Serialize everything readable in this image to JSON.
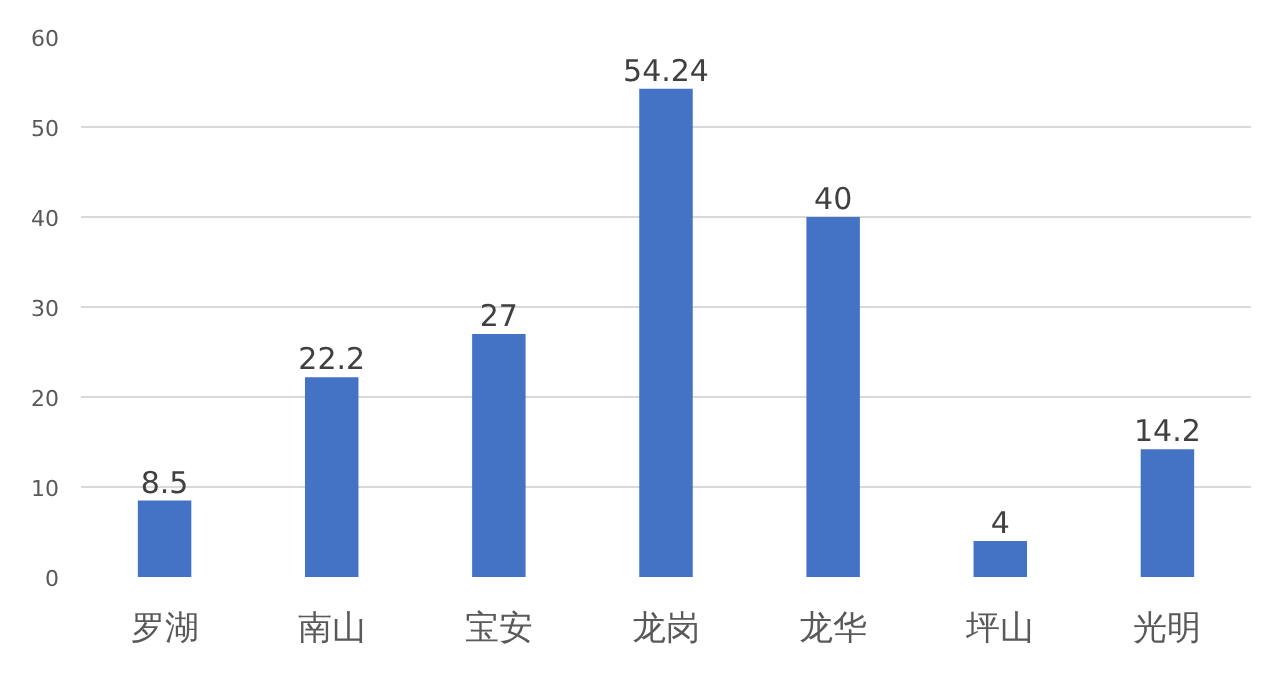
{
  "chart_data": {
    "type": "bar",
    "categories": [
      "罗湖",
      "南山",
      "宝安",
      "龙岗",
      "龙华",
      "坪山",
      "光明"
    ],
    "values": [
      8.5,
      22.2,
      27,
      54.24,
      40,
      4,
      14.2
    ],
    "color": "#4472c4",
    "ylim": [
      0,
      60
    ],
    "yticks": [
      0,
      10,
      20,
      30,
      40,
      50,
      60
    ],
    "grid": "y",
    "data_labels": true
  }
}
